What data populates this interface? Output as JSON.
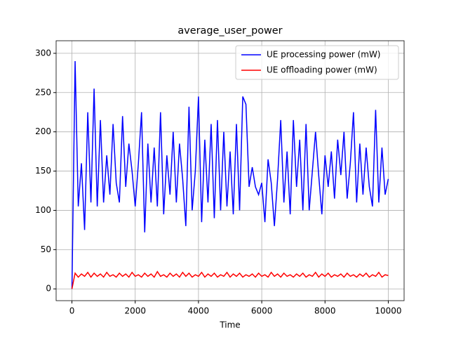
{
  "chart_data": {
    "type": "line",
    "title": "average_user_power",
    "xlabel": "Time",
    "x": [
      0,
      100,
      200,
      300,
      400,
      500,
      600,
      700,
      800,
      900,
      1000,
      1100,
      1200,
      1300,
      1400,
      1500,
      1600,
      1700,
      1800,
      1900,
      2000,
      2100,
      2200,
      2300,
      2400,
      2500,
      2600,
      2700,
      2800,
      2900,
      3000,
      3100,
      3200,
      3300,
      3400,
      3500,
      3600,
      3700,
      3800,
      3900,
      4000,
      4100,
      4200,
      4300,
      4400,
      4500,
      4600,
      4700,
      4800,
      4900,
      5000,
      5100,
      5200,
      5300,
      5400,
      5500,
      5600,
      5700,
      5800,
      5900,
      6000,
      6100,
      6200,
      6300,
      6400,
      6500,
      6600,
      6700,
      6800,
      6900,
      7000,
      7100,
      7200,
      7300,
      7400,
      7500,
      7600,
      7700,
      7800,
      7900,
      8000,
      8100,
      8200,
      8300,
      8400,
      8500,
      8600,
      8700,
      8800,
      8900,
      9000,
      9100,
      9200,
      9300,
      9400,
      9500,
      9600,
      9700,
      9800,
      9900,
      10000
    ],
    "series": [
      {
        "name": "UE processing power (mW)",
        "color": "#0000ff",
        "values": [
          0,
          290,
          105,
          160,
          75,
          225,
          110,
          255,
          105,
          215,
          110,
          170,
          120,
          210,
          135,
          110,
          220,
          130,
          185,
          150,
          105,
          160,
          225,
          72,
          185,
          110,
          180,
          105,
          225,
          95,
          170,
          120,
          200,
          110,
          185,
          140,
          80,
          232,
          100,
          150,
          245,
          85,
          190,
          110,
          210,
          90,
          215,
          100,
          200,
          105,
          175,
          95,
          210,
          100,
          245,
          235,
          130,
          155,
          130,
          120,
          135,
          85,
          165,
          135,
          80,
          140,
          215,
          110,
          175,
          95,
          215,
          130,
          190,
          100,
          210,
          100,
          150,
          200,
          145,
          95,
          170,
          130,
          175,
          115,
          190,
          145,
          200,
          115,
          160,
          225,
          110,
          185,
          120,
          180,
          130,
          105,
          228,
          110,
          180,
          120,
          140
        ]
      },
      {
        "name": "UE offloading power (mW)",
        "color": "#ff0000",
        "values": [
          0,
          20,
          15,
          19,
          16,
          21,
          15,
          20,
          16,
          19,
          15,
          21,
          16,
          18,
          15,
          20,
          16,
          19,
          15,
          21,
          16,
          18,
          15,
          20,
          16,
          19,
          15,
          22,
          16,
          18,
          15,
          20,
          16,
          19,
          15,
          21,
          16,
          20,
          15,
          18,
          16,
          21,
          15,
          19,
          16,
          20,
          15,
          18,
          16,
          21,
          15,
          19,
          16,
          20,
          15,
          18,
          16,
          19,
          15,
          20,
          16,
          18,
          15,
          21,
          16,
          19,
          15,
          20,
          16,
          18,
          15,
          19,
          16,
          20,
          15,
          18,
          16,
          21,
          15,
          19,
          16,
          20,
          15,
          18,
          16,
          19,
          15,
          20,
          16,
          18,
          15,
          19,
          16,
          20,
          15,
          18,
          16,
          21,
          15,
          18,
          17
        ]
      }
    ],
    "xlim": [
      -500,
      10500
    ],
    "ylim": [
      -15,
      316
    ],
    "xticks": [
      0,
      2000,
      4000,
      6000,
      8000,
      10000
    ],
    "yticks": [
      0,
      50,
      100,
      150,
      200,
      250,
      300
    ],
    "grid": true,
    "legend": "upper right"
  }
}
